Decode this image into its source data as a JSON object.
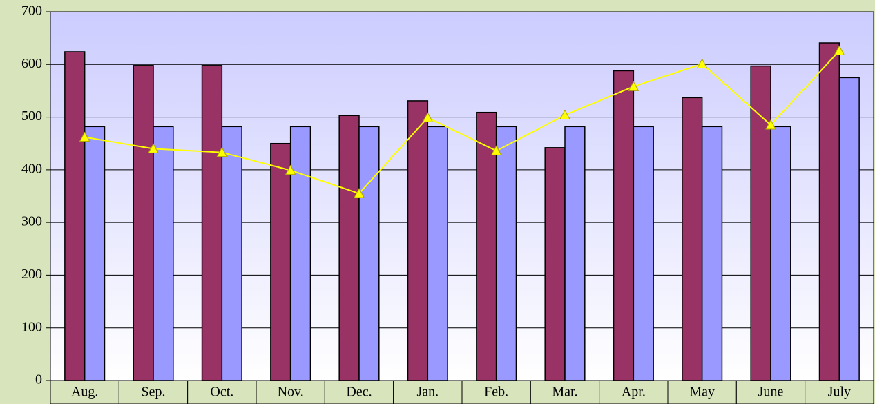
{
  "chart_data": {
    "type": "bar",
    "categories": [
      "Aug.",
      "Sep.",
      "Oct.",
      "Nov.",
      "Dec.",
      "Jan.",
      "Feb.",
      "Mar.",
      "Apr.",
      "May",
      "June",
      "July"
    ],
    "series": [
      {
        "type": "bar",
        "color": "#993366",
        "values": [
          624,
          598,
          598,
          450,
          503,
          531,
          509,
          442,
          588,
          537,
          597,
          641
        ]
      },
      {
        "type": "bar",
        "color": "#9999ff",
        "values": [
          482,
          482,
          482,
          482,
          482,
          482,
          482,
          482,
          482,
          482,
          482,
          575
        ]
      },
      {
        "type": "line",
        "color": "#ffff00",
        "values": [
          462,
          440,
          433,
          399,
          355,
          499,
          436,
          504,
          558,
          601,
          485,
          626
        ]
      }
    ],
    "ylim": [
      0,
      700
    ],
    "yticks": [
      0,
      100,
      200,
      300,
      400,
      500,
      600,
      700
    ],
    "grid": true
  }
}
